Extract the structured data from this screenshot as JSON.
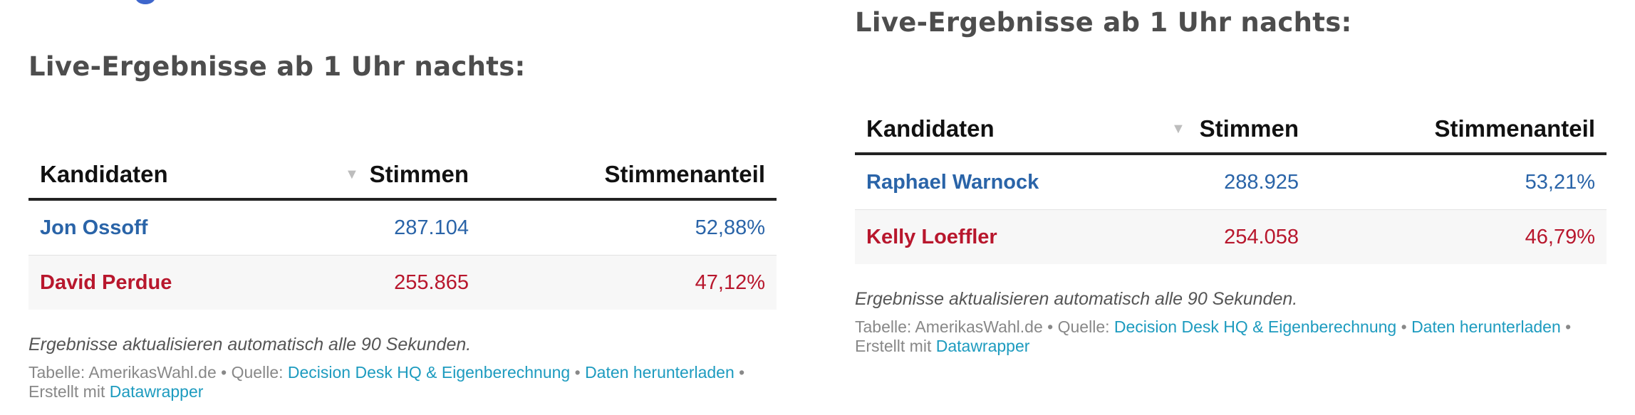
{
  "panels": [
    {
      "title": "Live-Ergebnisse ab 1 Uhr nachts:",
      "columns": {
        "candidates": "Kandidaten",
        "votes": "Stimmen",
        "share": "Stimmenanteil"
      },
      "sort_icon": "▼",
      "rows": [
        {
          "name": "Jon Ossoff",
          "votes": "287.104",
          "share": "52,88%",
          "color": "#2a64a8"
        },
        {
          "name": "David Perdue",
          "votes": "255.865",
          "share": "47,12%",
          "color": "#b8172d"
        }
      ],
      "note": "Ergebnisse aktualisieren automatisch alle 90 Sekunden.",
      "footer": {
        "table_label": "Tabelle: AmerikasWahl.de",
        "sep1": " • ",
        "source_label": "Quelle: ",
        "source_link": "Decision Desk HQ & Eigenberechnung",
        "sep2": " • ",
        "download_link": "Daten herunterladen",
        "sep3": " •",
        "created_label": "Erstellt mit ",
        "created_link": "Datawrapper"
      }
    },
    {
      "title": "Live-Ergebnisse ab 1 Uhr nachts:",
      "columns": {
        "candidates": "Kandidaten",
        "votes": "Stimmen",
        "share": "Stimmenanteil"
      },
      "sort_icon": "▼",
      "rows": [
        {
          "name": "Raphael Warnock",
          "votes": "288.925",
          "share": "53,21%",
          "color": "#2a64a8"
        },
        {
          "name": "Kelly Loeffler",
          "votes": "254.058",
          "share": "46,79%",
          "color": "#b8172d"
        }
      ],
      "note": "Ergebnisse aktualisieren automatisch alle 90 Sekunden.",
      "footer": {
        "table_label": "Tabelle: AmerikasWahl.de",
        "sep1": " • ",
        "source_label": "Quelle: ",
        "source_link": "Decision Desk HQ & Eigenberechnung",
        "sep2": " • ",
        "download_link": "Daten herunterladen",
        "sep3": " •",
        "created_label": "Erstellt mit ",
        "created_link": "Datawrapper"
      }
    }
  ],
  "colors": {
    "dem": "#2a64a8",
    "rep": "#b8172d",
    "link": "#1d9bbf",
    "title": "#4d4d4d"
  }
}
